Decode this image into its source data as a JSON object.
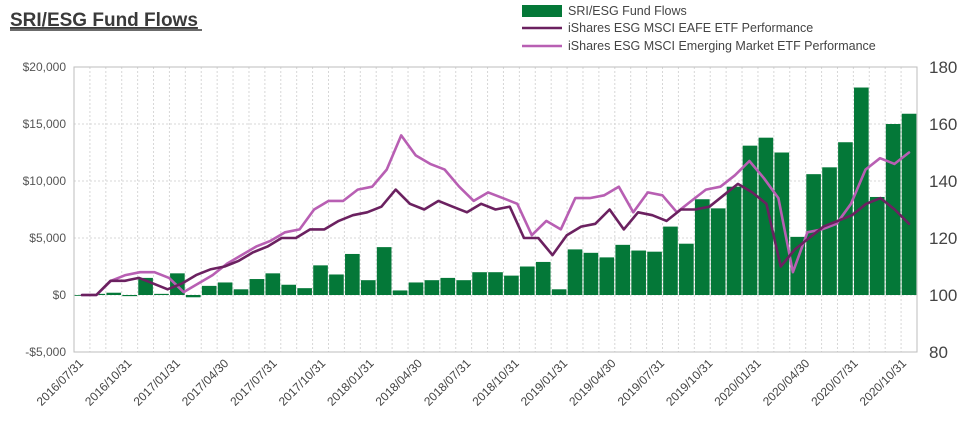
{
  "chart_data": {
    "type": "bar+line",
    "title": "SRI/ESG Fund Flows",
    "xlabel": "",
    "ylabel_left": "",
    "ylabel_right": "",
    "legend_position": "top-right",
    "x_tick_labels": [
      "2016/07/31",
      "2016/10/31",
      "2017/01/31",
      "2017/04/30",
      "2017/07/31",
      "2017/10/31",
      "2018/01/31",
      "2018/04/30",
      "2018/07/31",
      "2018/10/31",
      "2019/01/31",
      "2019/04/30",
      "2019/07/31",
      "2019/10/31",
      "2020/01/31",
      "2020/04/30",
      "2020/07/31",
      "2020/10/31"
    ],
    "y_left": {
      "ylim": [
        -5000,
        20000
      ],
      "ticks": [
        -5000,
        0,
        5000,
        10000,
        15000,
        20000
      ],
      "tick_labels": [
        "-$5,000",
        "$0",
        "$5,000",
        "$10,000",
        "$15,000",
        "$20,000"
      ]
    },
    "y_right": {
      "ylim": [
        80,
        180
      ],
      "ticks": [
        80,
        100,
        120,
        140,
        160,
        180
      ],
      "tick_labels": [
        "80",
        "100",
        "120",
        "140",
        "160",
        "180"
      ]
    },
    "grid": true,
    "series": [
      {
        "name": "SRI/ESG Fund Flows",
        "type": "bar",
        "axis": "left",
        "color": "#047838",
        "values": [
          0,
          100,
          200,
          -100,
          1500,
          100,
          1900,
          -200,
          800,
          1100,
          500,
          1400,
          1900,
          900,
          600,
          2600,
          1800,
          3600,
          1300,
          4200,
          400,
          1100,
          1300,
          1500,
          1300,
          2000,
          2000,
          1700,
          2500,
          2900,
          500,
          4000,
          3700,
          3300,
          4400,
          3900,
          3800,
          6000,
          4500,
          8400,
          7600,
          9500,
          13100,
          13800,
          12500,
          5100,
          10600,
          11200,
          13400,
          18200,
          8600,
          15000,
          15900
        ]
      },
      {
        "name": "iShares ESG MSCI EAFE ETF Performance",
        "type": "line",
        "axis": "right",
        "color": "#6b2160",
        "values": [
          100,
          100,
          105,
          105,
          106,
          104,
          102,
          104,
          107,
          109,
          110,
          112,
          115,
          117,
          120,
          120,
          123,
          123,
          126,
          128,
          129,
          131,
          137,
          132,
          130,
          133,
          131,
          129,
          132,
          130,
          131,
          120,
          120,
          114,
          121,
          124,
          125,
          130,
          123,
          129,
          128,
          126,
          130,
          130,
          131,
          135,
          139,
          136,
          132,
          110,
          116,
          120,
          124,
          126,
          128,
          132,
          134,
          130,
          125
        ]
      },
      {
        "name": "iShares ESG MSCI Emerging Market ETF Performance",
        "type": "line",
        "axis": "right",
        "color": "#b85fb3",
        "values": [
          100,
          100,
          105,
          107,
          108,
          108,
          106,
          101,
          104,
          107,
          111,
          114,
          117,
          119,
          122,
          123,
          130,
          133,
          133,
          137,
          138,
          144,
          156,
          149,
          146,
          144,
          138,
          133,
          136,
          134,
          132,
          121,
          126,
          123,
          134,
          134,
          135,
          138,
          129,
          136,
          135,
          129,
          133,
          137,
          138,
          142,
          147,
          141,
          134,
          108,
          122,
          123,
          125,
          132,
          144,
          148,
          146,
          150
        ]
      }
    ]
  }
}
